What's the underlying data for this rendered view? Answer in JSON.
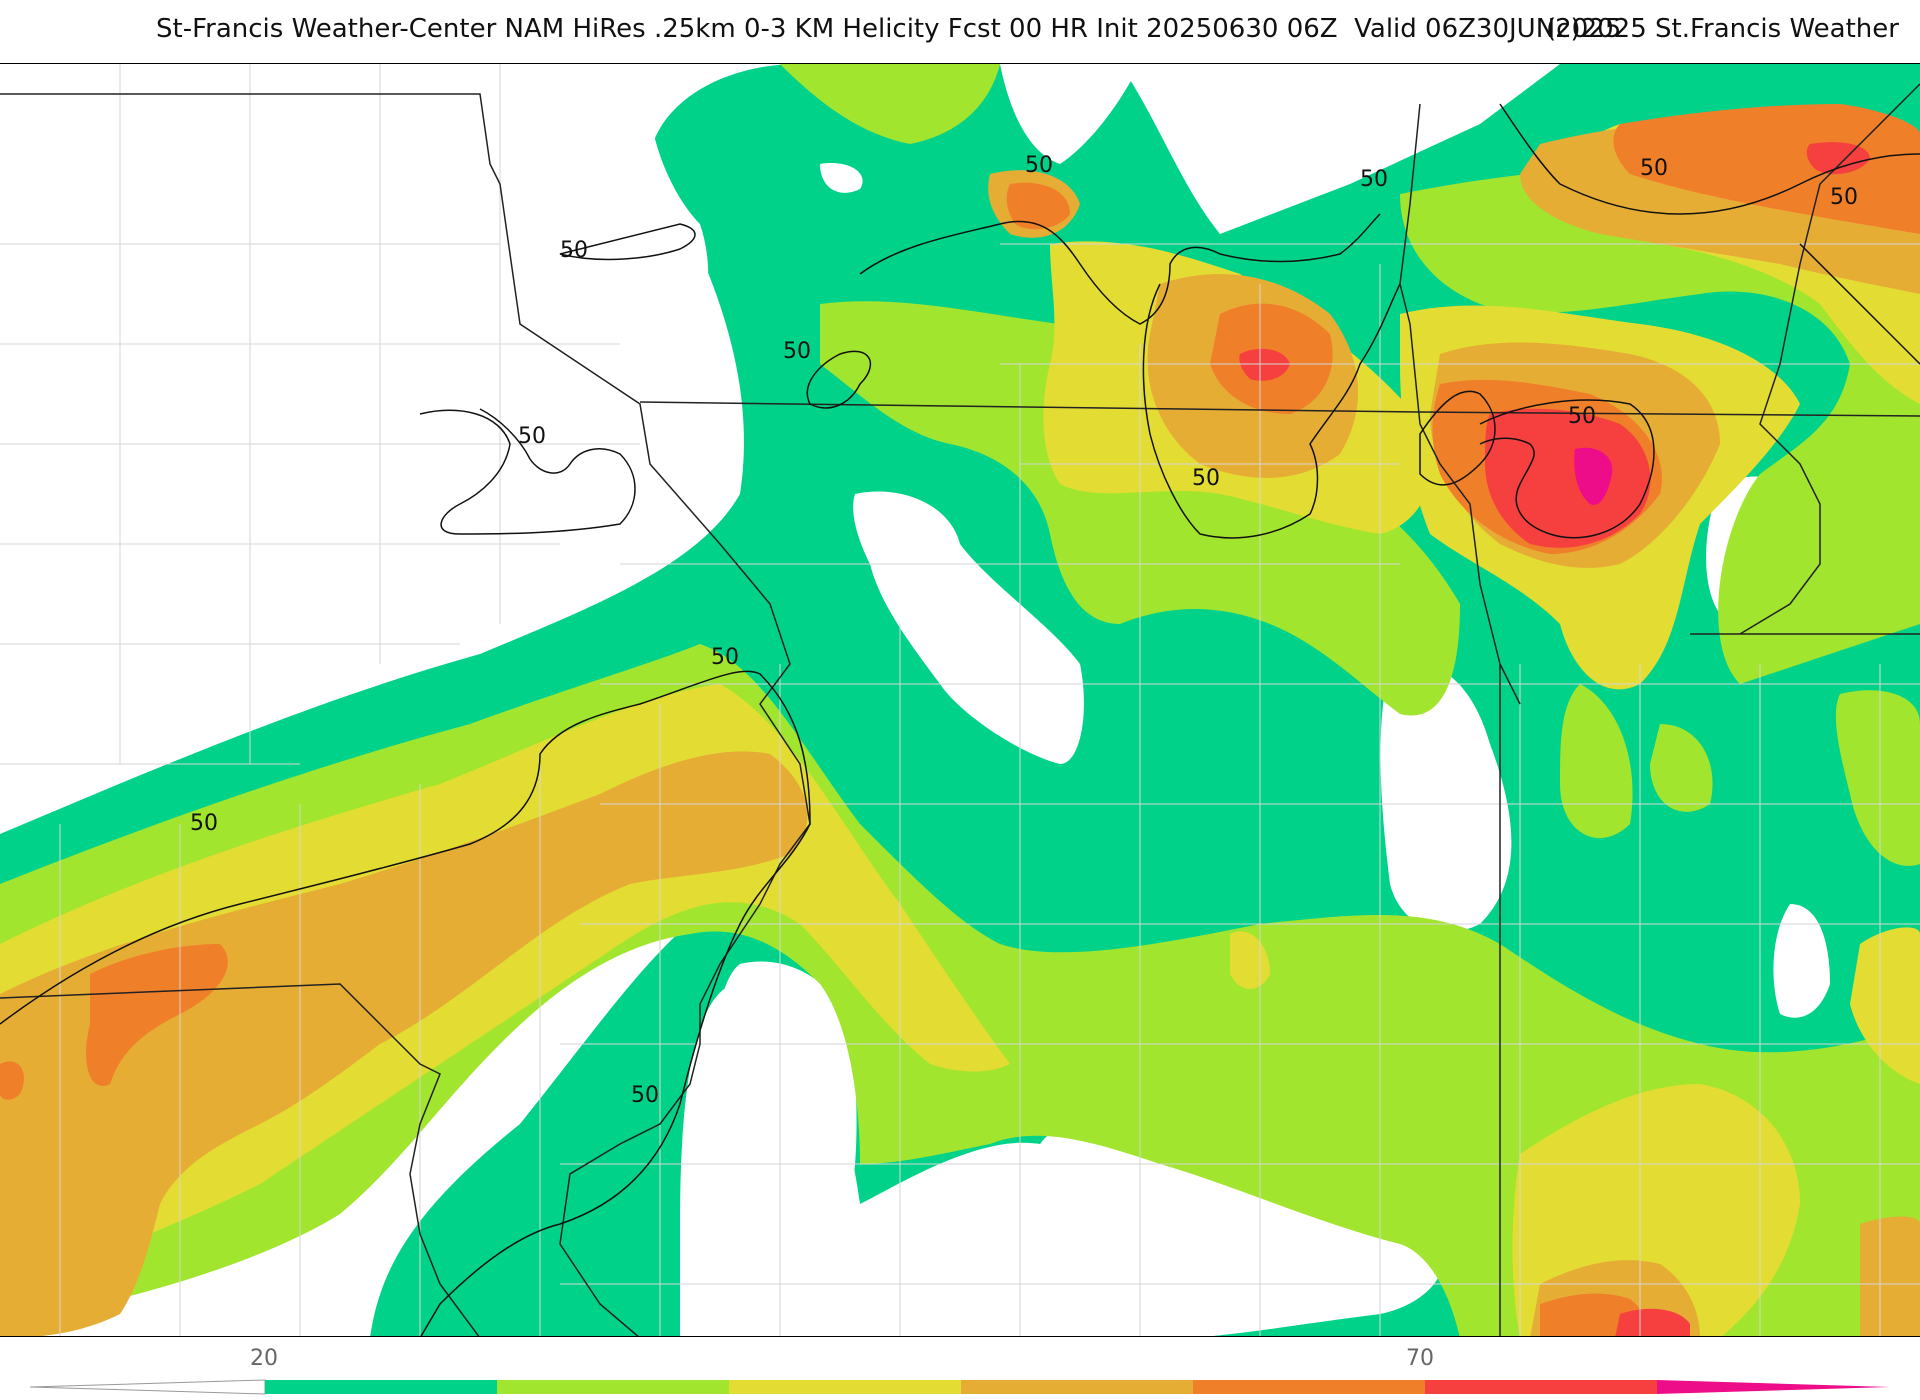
{
  "header": {
    "title": "St-Francis Weather-Center NAM HiRes .25km 0-3 KM Helicity Fcst 00 HR Init 20250630 06Z  Valid 06Z30JUN2025",
    "copyright": "(c)2025 St.Francis Weather"
  },
  "map": {
    "field": "0-3 KM Helicity",
    "contour_value_label": "50",
    "colors": {
      "green": "#00d28a",
      "lime": "#a2e52e",
      "yellow": "#e3dd33",
      "gold": "#e6ad35",
      "orange": "#f07f2a",
      "red": "#f5403f",
      "magenta": "#ee0d88"
    }
  },
  "legend": {
    "tick_labels": [
      "20",
      "70"
    ],
    "bins": [
      "#00d28a",
      "#a2e52e",
      "#e3dd33",
      "#e6ad35",
      "#f07f2a",
      "#f5403f",
      "#ee0d88"
    ]
  }
}
